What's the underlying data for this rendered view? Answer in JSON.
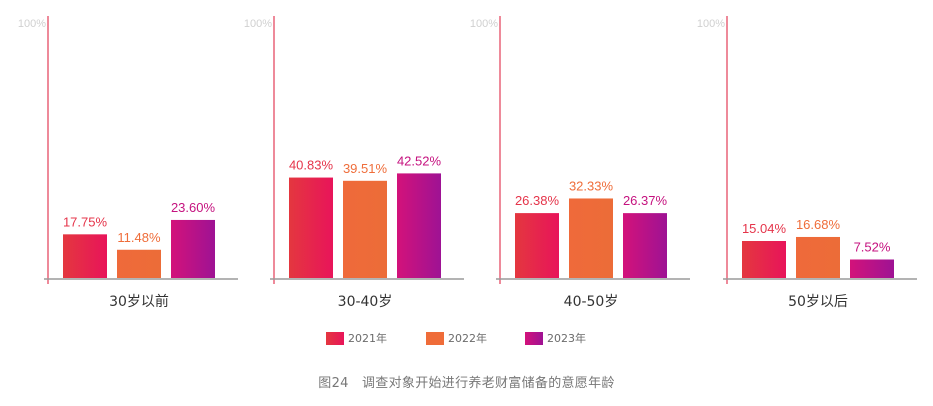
{
  "chart_data": {
    "type": "bar",
    "ylim": [
      0,
      100
    ],
    "ytick_label": "100%",
    "groups": [
      "30岁以前",
      "30-40岁",
      "40-50岁",
      "50岁以后"
    ],
    "series": [
      {
        "name": "2021年",
        "values": [
          17.75,
          40.83,
          26.38,
          15.04
        ],
        "labels": [
          "17.75%",
          "40.83%",
          "26.38%",
          "15.04%"
        ]
      },
      {
        "name": "2022年",
        "values": [
          11.48,
          39.51,
          32.33,
          16.68
        ],
        "labels": [
          "11.48%",
          "39.51%",
          "32.33%",
          "16.68%"
        ]
      },
      {
        "name": "2023年",
        "values": [
          23.6,
          42.52,
          26.37,
          7.52
        ],
        "labels": [
          "23.60%",
          "42.52%",
          "26.37%",
          "7.52%"
        ]
      }
    ],
    "colors": {
      "2021年": "#e5344a",
      "2022年": "#ef6d3a",
      "2023年": "#c5127f",
      "axis": "#e23d57",
      "baseline": "#9a9a9a",
      "tick_text": "#d0d0d0"
    }
  },
  "caption": "图24　调查对象开始进行养老财富储备的意愿年龄"
}
